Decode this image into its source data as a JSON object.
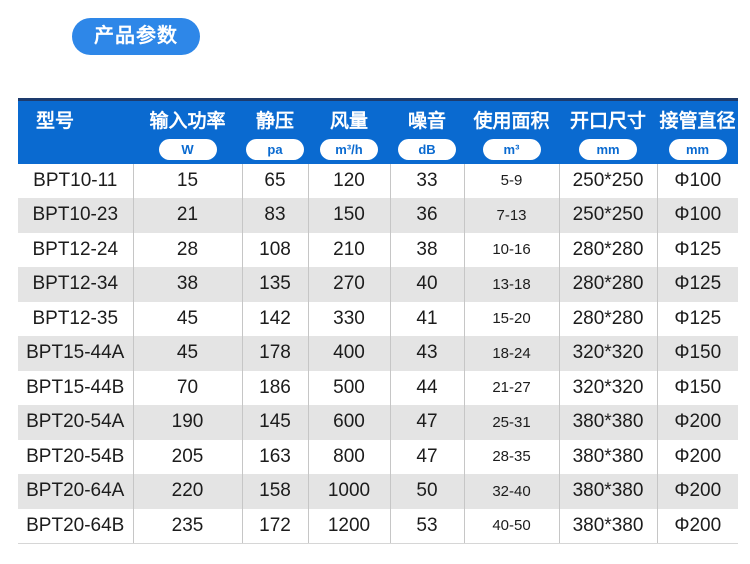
{
  "page": {
    "title_badge": "产品参数"
  },
  "colors": {
    "badge_blue": "#2e87e8",
    "header_blue": "#0a6ad0",
    "header_top_line_navy": "#1d3b6d",
    "stripe_gray": "#e4e4e4",
    "divider_gray": "#c6c6c6",
    "body_text": "#1c1c1c"
  },
  "table": {
    "columns": [
      {
        "label": "型号",
        "unit": ""
      },
      {
        "label": "输入功率",
        "unit": "W"
      },
      {
        "label": "静压",
        "unit": "pa"
      },
      {
        "label": "风量",
        "unit": "m³/h"
      },
      {
        "label": "噪音",
        "unit": "dB"
      },
      {
        "label": "使用面积",
        "unit": "m³"
      },
      {
        "label": "开口尺寸",
        "unit": "mm"
      },
      {
        "label": "接管直径",
        "unit": "mm"
      }
    ],
    "rows": [
      [
        "BPT10-11",
        "15",
        "65",
        "120",
        "33",
        "5-9",
        "250*250",
        "Φ100"
      ],
      [
        "BPT10-23",
        "21",
        "83",
        "150",
        "36",
        "7-13",
        "250*250",
        "Φ100"
      ],
      [
        "BPT12-24",
        "28",
        "108",
        "210",
        "38",
        "10-16",
        "280*280",
        "Φ125"
      ],
      [
        "BPT12-34",
        "38",
        "135",
        "270",
        "40",
        "13-18",
        "280*280",
        "Φ125"
      ],
      [
        "BPT12-35",
        "45",
        "142",
        "330",
        "41",
        "15-20",
        "280*280",
        "Φ125"
      ],
      [
        "BPT15-44A",
        "45",
        "178",
        "400",
        "43",
        "18-24",
        "320*320",
        "Φ150"
      ],
      [
        "BPT15-44B",
        "70",
        "186",
        "500",
        "44",
        "21-27",
        "320*320",
        "Φ150"
      ],
      [
        "BPT20-54A",
        "190",
        "145",
        "600",
        "47",
        "25-31",
        "380*380",
        "Φ200"
      ],
      [
        "BPT20-54B",
        "205",
        "163",
        "800",
        "47",
        "28-35",
        "380*380",
        "Φ200"
      ],
      [
        "BPT20-64A",
        "220",
        "158",
        "1000",
        "50",
        "32-40",
        "380*380",
        "Φ200"
      ],
      [
        "BPT20-64B",
        "235",
        "172",
        "1200",
        "53",
        "40-50",
        "380*380",
        "Φ200"
      ]
    ]
  }
}
